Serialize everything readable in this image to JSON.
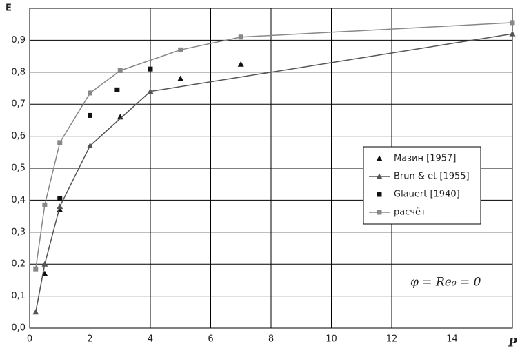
{
  "chart_data": {
    "type": "line",
    "xlabel": "P",
    "ylabel": "E",
    "annotation": "φ = Re₀ = 0",
    "xlim": [
      0,
      16
    ],
    "ylim": [
      0,
      1
    ],
    "xticks": [
      0,
      2,
      4,
      6,
      8,
      10,
      12,
      14
    ],
    "yticks": [
      {
        "value": 0,
        "label": "0,0"
      },
      {
        "value": 0.1,
        "label": "0,1"
      },
      {
        "value": 0.2,
        "label": "0,2"
      },
      {
        "value": 0.3,
        "label": "0,3"
      },
      {
        "value": 0.4,
        "label": "0,4"
      },
      {
        "value": 0.5,
        "label": "0,5"
      },
      {
        "value": 0.6,
        "label": "0,6"
      },
      {
        "value": 0.7,
        "label": "0,7"
      },
      {
        "value": 0.8,
        "label": "0,8"
      },
      {
        "value": 0.9,
        "label": "0,9"
      }
    ],
    "grid": true,
    "series": [
      {
        "name": "Мазин [1957]",
        "color": "#111111",
        "marker": "triangle",
        "line": false,
        "x": [
          0.5,
          1,
          3,
          5,
          7
        ],
        "values": [
          0.17,
          0.37,
          0.66,
          0.78,
          0.825
        ]
      },
      {
        "name": "Brun & et [1955]",
        "color": "#555555",
        "marker": "triangle",
        "line": true,
        "x": [
          0.2,
          0.5,
          1,
          2,
          4,
          16
        ],
        "values": [
          0.05,
          0.2,
          0.38,
          0.57,
          0.74,
          0.92
        ]
      },
      {
        "name": "Glauert [1940]",
        "color": "#111111",
        "marker": "square",
        "line": false,
        "x": [
          1,
          2,
          2.9,
          4
        ],
        "values": [
          0.405,
          0.665,
          0.745,
          0.81
        ]
      },
      {
        "name": "расчёт",
        "color": "#888888",
        "marker": "square",
        "line": true,
        "x": [
          0.2,
          0.5,
          1,
          2,
          3,
          5,
          7,
          16
        ],
        "values": [
          0.185,
          0.385,
          0.58,
          0.735,
          0.805,
          0.87,
          0.91,
          0.955
        ]
      }
    ]
  }
}
